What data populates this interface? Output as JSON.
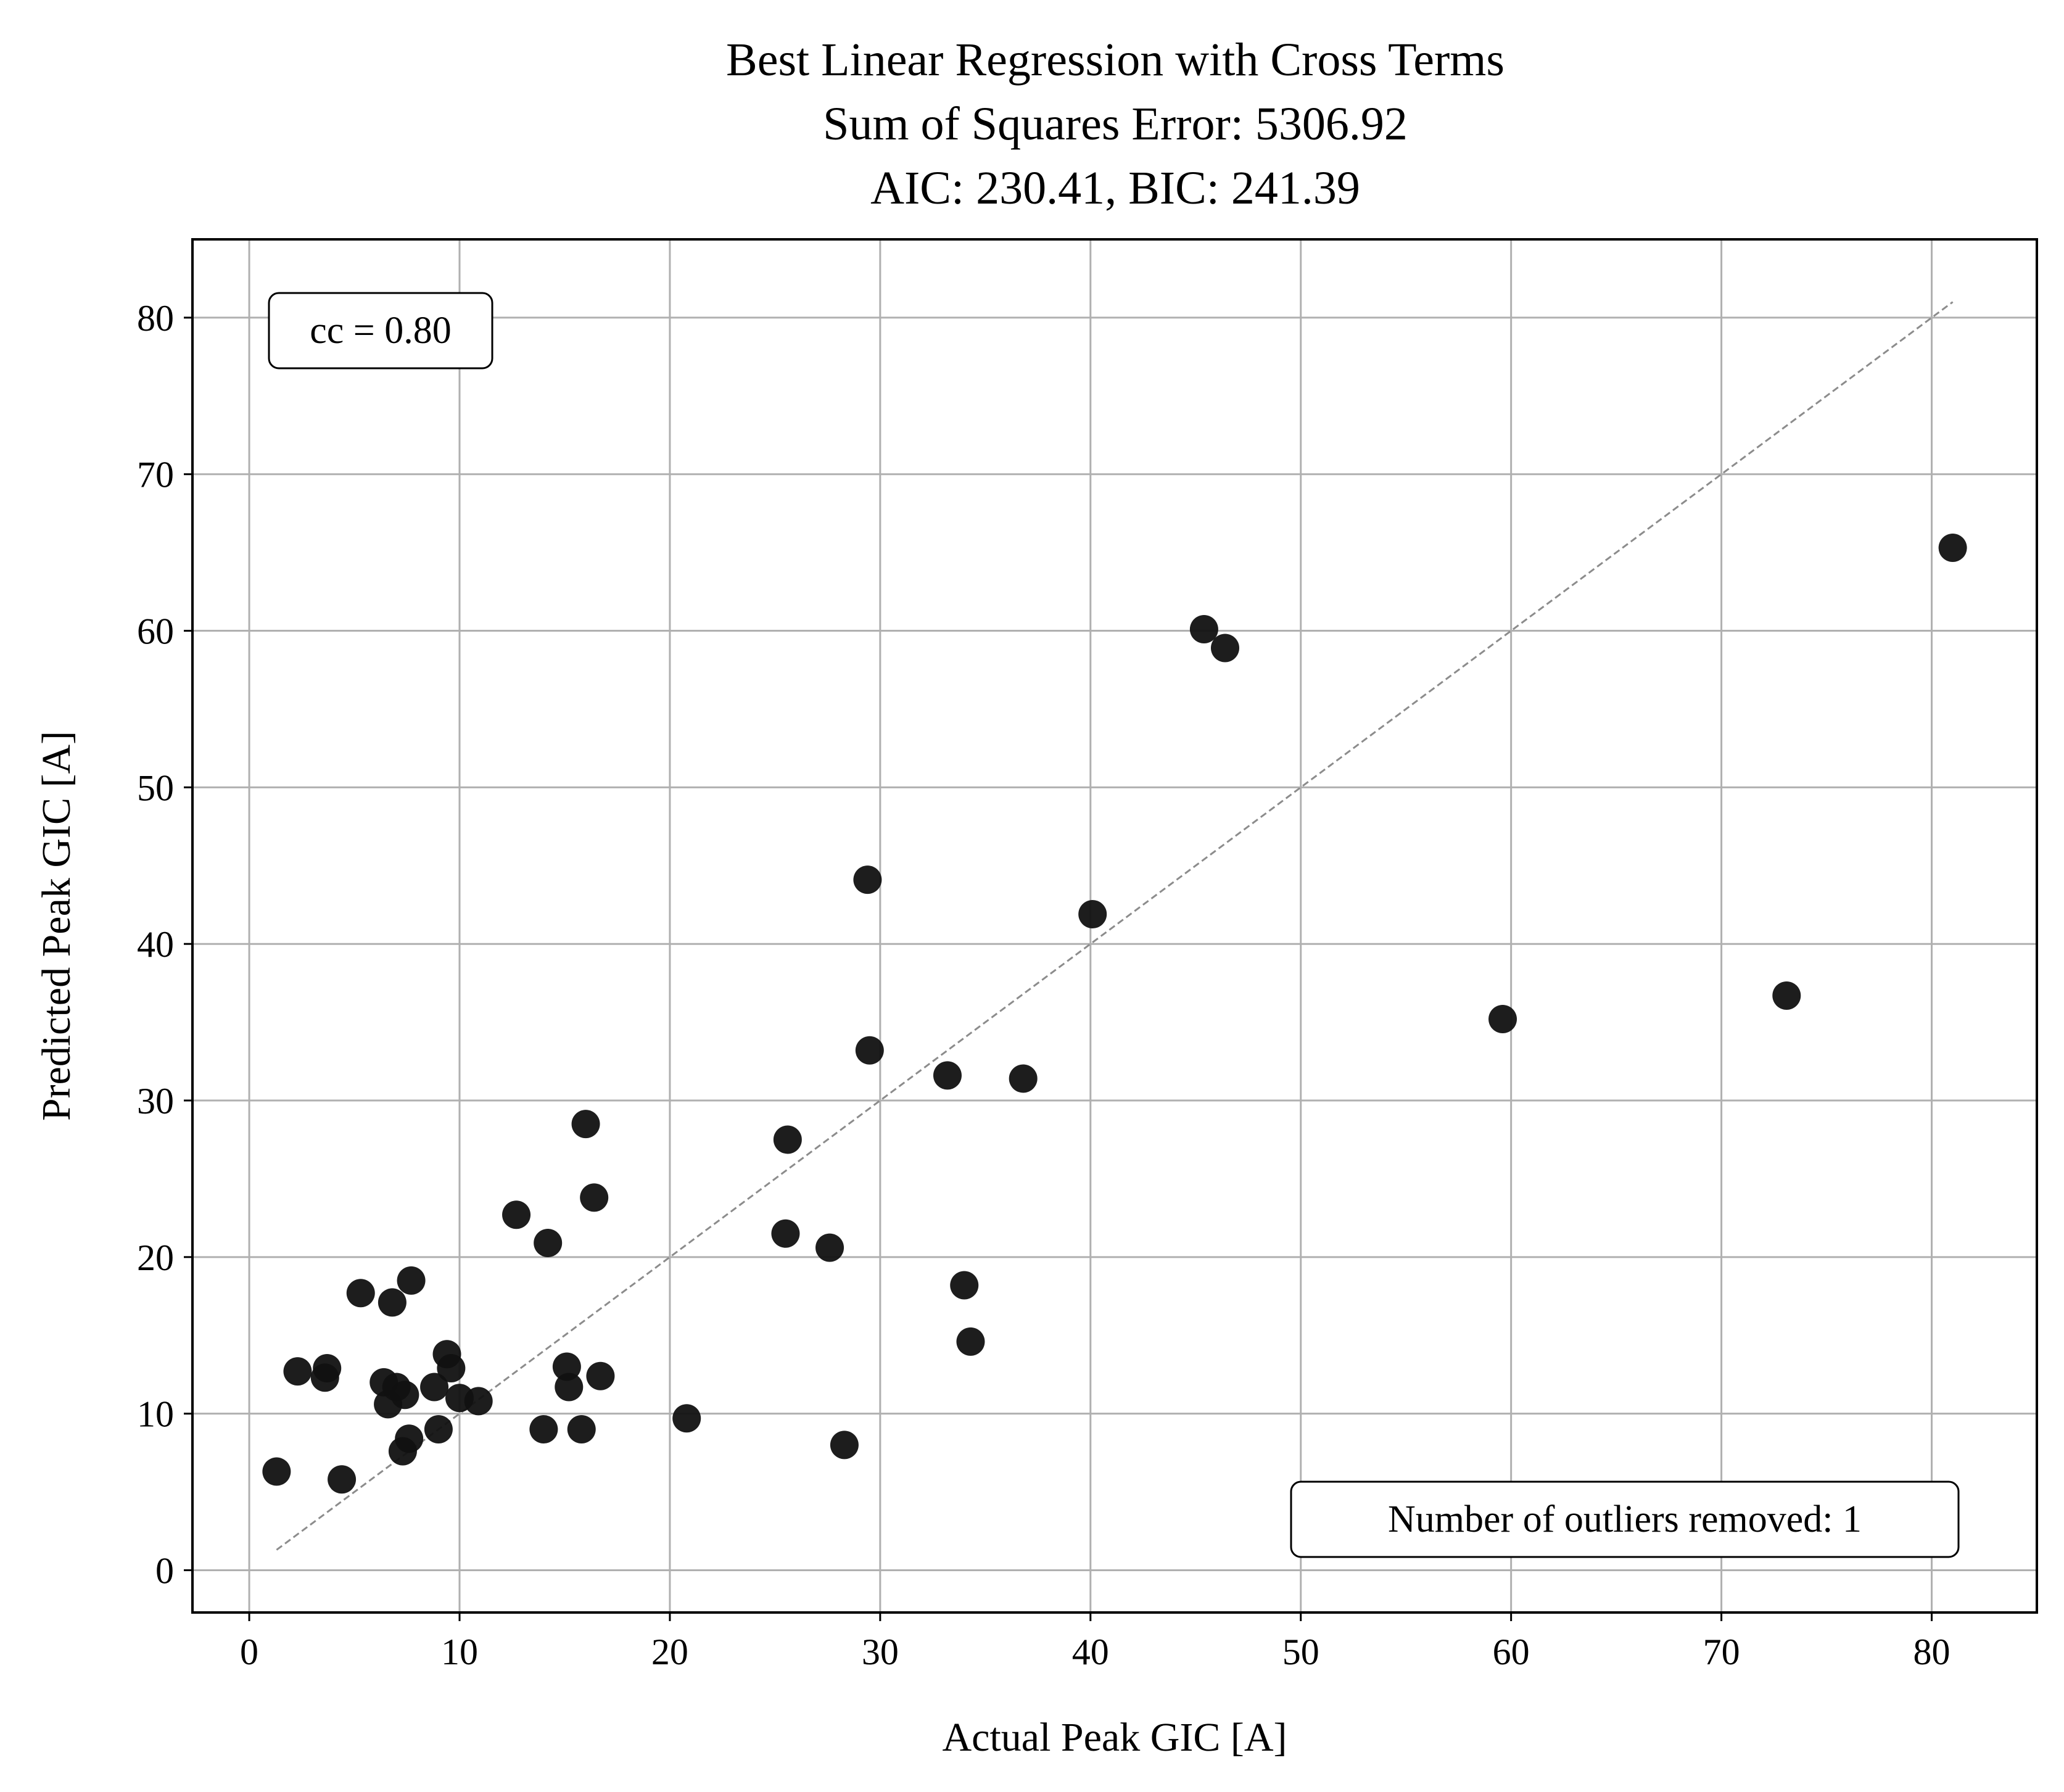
{
  "chart_data": {
    "type": "scatter",
    "title_lines": [
      "Best Linear Regression with Cross Terms",
      "Sum of Squares Error: 5306.92",
      "AIC: 230.41, BIC: 241.39"
    ],
    "xlabel": "Actual Peak GIC [A]",
    "ylabel": "Predicted Peak GIC [A]",
    "xlim": [
      -2.7,
      85
    ],
    "ylim": [
      -2.7,
      85
    ],
    "xticks": [
      0,
      10,
      20,
      30,
      40,
      50,
      60,
      70,
      80
    ],
    "yticks": [
      0,
      10,
      20,
      30,
      40,
      50,
      60,
      70,
      80
    ],
    "grid": true,
    "reference_line": {
      "style": "dashed",
      "color": "#8c8c8c",
      "from": [
        1.3,
        1.3
      ],
      "to": [
        81.0,
        81.0
      ]
    },
    "marker_color": "#111111",
    "annotations": {
      "cc": "cc = 0.80",
      "outliers": "Number of outliers removed: 1"
    },
    "points": [
      {
        "x": 1.3,
        "y": 6.3
      },
      {
        "x": 2.3,
        "y": 12.7
      },
      {
        "x": 3.6,
        "y": 12.3
      },
      {
        "x": 3.7,
        "y": 12.9
      },
      {
        "x": 4.4,
        "y": 5.8
      },
      {
        "x": 5.3,
        "y": 17.7
      },
      {
        "x": 6.4,
        "y": 12.0
      },
      {
        "x": 6.6,
        "y": 10.6
      },
      {
        "x": 6.8,
        "y": 17.1
      },
      {
        "x": 7.0,
        "y": 11.7
      },
      {
        "x": 7.3,
        "y": 7.6
      },
      {
        "x": 7.4,
        "y": 11.2
      },
      {
        "x": 7.6,
        "y": 8.4
      },
      {
        "x": 7.7,
        "y": 18.5
      },
      {
        "x": 8.8,
        "y": 11.7
      },
      {
        "x": 9.0,
        "y": 9.0
      },
      {
        "x": 9.4,
        "y": 13.8
      },
      {
        "x": 9.6,
        "y": 12.9
      },
      {
        "x": 10.0,
        "y": 11.0
      },
      {
        "x": 10.9,
        "y": 10.8
      },
      {
        "x": 12.7,
        "y": 22.7
      },
      {
        "x": 14.0,
        "y": 9.0
      },
      {
        "x": 14.2,
        "y": 20.9
      },
      {
        "x": 15.1,
        "y": 13.0
      },
      {
        "x": 15.2,
        "y": 11.7
      },
      {
        "x": 15.8,
        "y": 9.0
      },
      {
        "x": 16.0,
        "y": 28.5
      },
      {
        "x": 16.4,
        "y": 23.8
      },
      {
        "x": 16.7,
        "y": 12.4
      },
      {
        "x": 20.8,
        "y": 9.7
      },
      {
        "x": 25.5,
        "y": 21.5
      },
      {
        "x": 25.6,
        "y": 27.5
      },
      {
        "x": 27.6,
        "y": 20.6
      },
      {
        "x": 28.3,
        "y": 8.0
      },
      {
        "x": 29.4,
        "y": 44.1
      },
      {
        "x": 29.5,
        "y": 33.2
      },
      {
        "x": 33.2,
        "y": 31.6
      },
      {
        "x": 34.0,
        "y": 18.2
      },
      {
        "x": 34.3,
        "y": 14.6
      },
      {
        "x": 36.8,
        "y": 31.4
      },
      {
        "x": 40.1,
        "y": 41.9
      },
      {
        "x": 45.4,
        "y": 60.1
      },
      {
        "x": 46.4,
        "y": 58.9
      },
      {
        "x": 59.6,
        "y": 35.2
      },
      {
        "x": 73.1,
        "y": 36.7
      },
      {
        "x": 81.0,
        "y": 65.3
      }
    ]
  }
}
